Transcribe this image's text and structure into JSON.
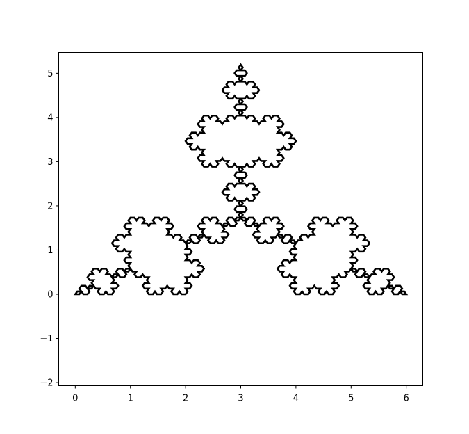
{
  "chart_data": {
    "type": "line",
    "title": "",
    "xlabel": "",
    "ylabel": "",
    "xlim": [
      -0.3,
      6.3
    ],
    "ylim": [
      -2.07,
      5.47
    ],
    "x_ticks": [
      0,
      1,
      2,
      3,
      4,
      5,
      6
    ],
    "x_tick_labels": [
      "0",
      "1",
      "2",
      "3",
      "4",
      "5",
      "6"
    ],
    "y_ticks": [
      -2,
      -1,
      0,
      1,
      2,
      3,
      4,
      5
    ],
    "y_tick_labels": [
      "−2",
      "−1",
      "0",
      "1",
      "2",
      "3",
      "4",
      "5"
    ],
    "grid": false,
    "legend": null,
    "series": [
      {
        "description_hidden": true,
        "color": "#000000",
        "curve": "koch-anti-snowflake",
        "closed": true,
        "vertices": [
          [
            0,
            0
          ],
          [
            6,
            0
          ],
          [
            3,
            5.196
          ]
        ],
        "iterations": 4,
        "bump_direction": "inward"
      }
    ]
  }
}
